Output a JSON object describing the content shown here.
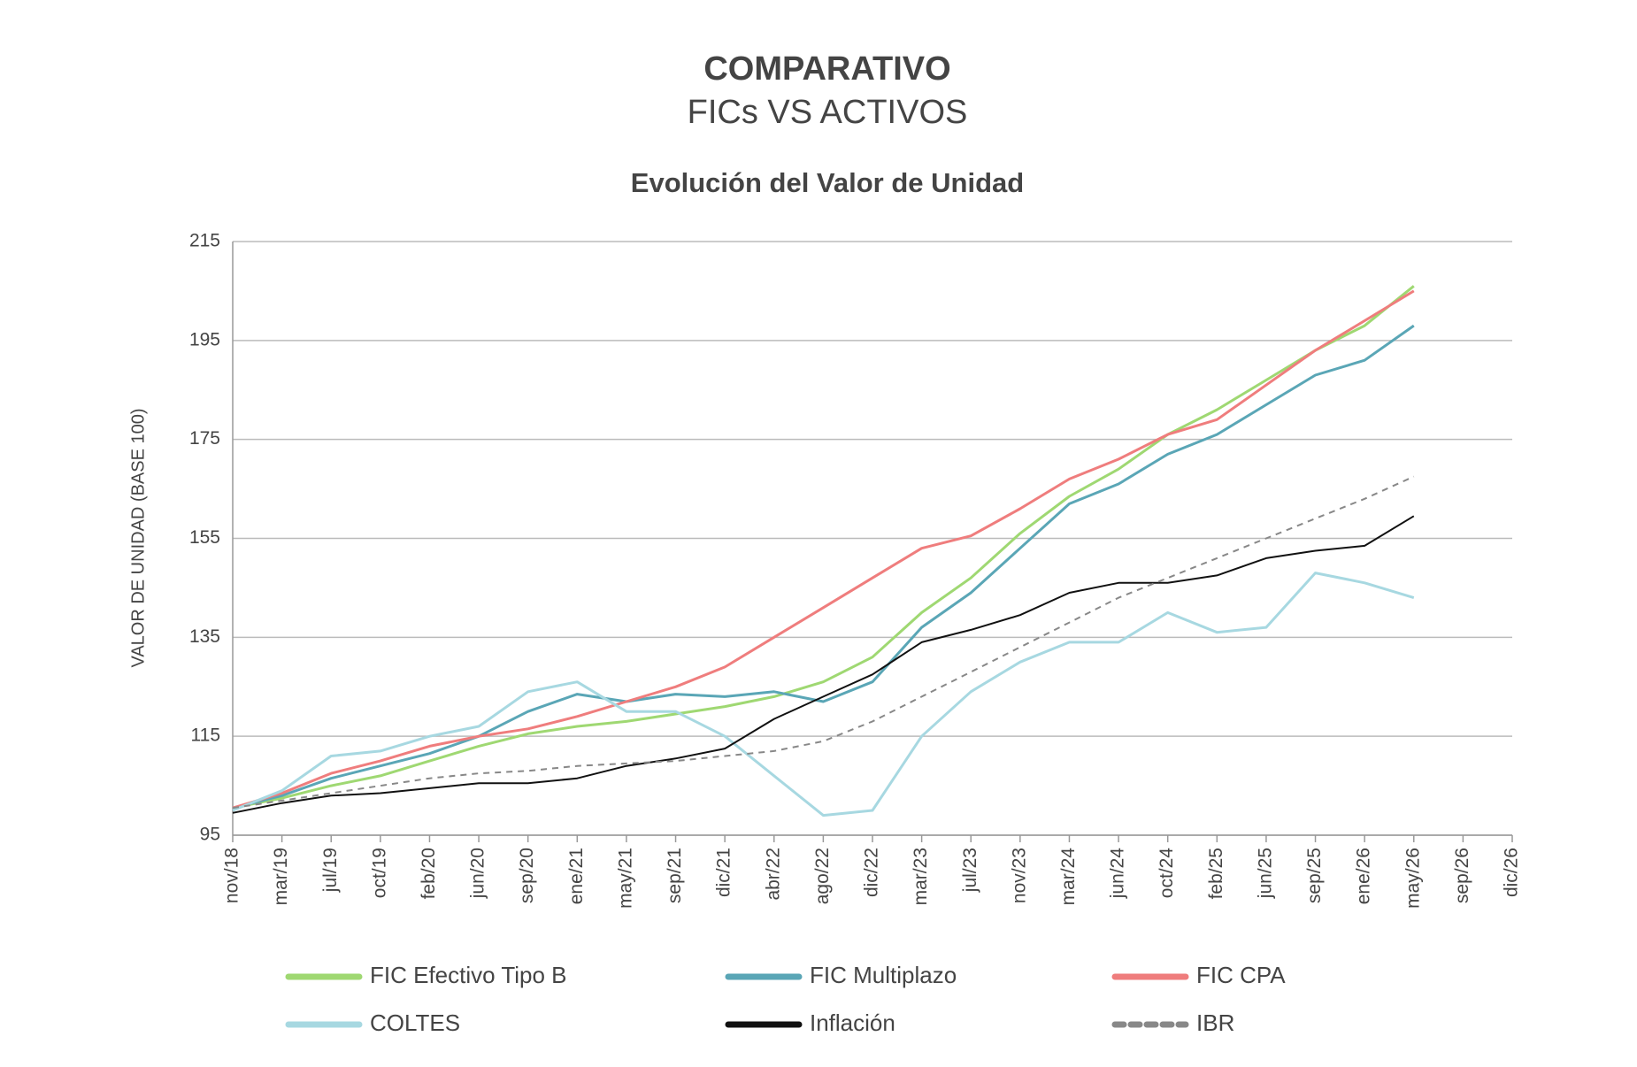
{
  "chart_data": {
    "type": "line",
    "title": "COMPARATIVO",
    "subtitle": "FICs VS ACTIVOS",
    "chart_title": "Evolución del Valor de Unidad",
    "y_label": "VALOR DE UNIDAD (BASE 100)",
    "categories": [
      "nov/18",
      "mar/19",
      "jul/19",
      "oct/19",
      "feb/20",
      "jun/20",
      "sep/20",
      "ene/21",
      "may/21",
      "sep/21",
      "dic/21",
      "abr/22",
      "ago/22",
      "dic/22",
      "mar/23",
      "jul/23",
      "nov/23",
      "mar/24",
      "jun/24",
      "oct/24",
      "feb/25",
      "jun/25",
      "sep/25",
      "ene/26",
      "may/26",
      "sep/26",
      "dic/26"
    ],
    "ylim": [
      95,
      215
    ],
    "yticks": [
      95,
      115,
      135,
      155,
      175,
      195,
      215
    ],
    "grid": true,
    "legend": "bottom",
    "series": [
      {
        "name": "FIC Efectivo Tipo B",
        "color": "#9fd872",
        "values": [
          100.5,
          102.5,
          105,
          107,
          110,
          113,
          115.5,
          117,
          118,
          119.5,
          121,
          123,
          126,
          131,
          140,
          147,
          156,
          163.5,
          169,
          176,
          181,
          187,
          193,
          198,
          206,
          null,
          null
        ]
      },
      {
        "name": "FIC Multiplazo",
        "color": "#5aa6b6",
        "values": [
          100.5,
          103,
          106.5,
          109,
          111.5,
          115,
          120,
          123.5,
          122,
          123.5,
          123,
          124,
          122,
          126,
          137,
          144,
          153,
          162,
          166,
          172,
          176,
          182,
          188,
          191,
          198,
          null,
          null
        ]
      },
      {
        "name": "FIC CPA",
        "color": "#ef7d7d",
        "values": [
          100.5,
          103.5,
          107.5,
          110,
          113,
          115,
          116.5,
          119,
          122,
          125,
          129,
          135,
          141,
          147,
          153,
          155.5,
          161,
          167,
          171,
          176,
          179,
          186,
          193,
          199,
          205,
          null,
          null
        ]
      },
      {
        "name": "COLTES",
        "color": "#a7d8e1",
        "values": [
          100,
          104,
          111,
          112,
          115,
          117,
          124,
          126,
          120,
          120,
          115,
          107,
          99,
          100,
          115,
          124,
          130,
          134,
          134,
          140,
          136,
          137,
          148,
          146,
          143,
          null,
          null
        ]
      },
      {
        "name": "Inflación",
        "color": "#111111",
        "values": [
          99.5,
          101.5,
          103,
          103.5,
          104.5,
          105.5,
          105.5,
          106.5,
          109,
          110.5,
          112.5,
          118.5,
          123,
          127.5,
          134,
          136.5,
          139.5,
          144,
          146,
          146,
          147.5,
          151,
          152.5,
          153.5,
          159.5,
          null,
          null
        ]
      },
      {
        "name": "IBR",
        "color": "#888888",
        "dashed": true,
        "values": [
          100.5,
          102,
          103.5,
          105,
          106.5,
          107.5,
          108,
          109,
          109.5,
          110,
          111,
          112,
          114,
          118,
          123,
          128,
          133,
          138,
          143,
          147,
          151,
          155,
          159,
          163,
          167.5,
          null,
          null
        ]
      }
    ]
  }
}
